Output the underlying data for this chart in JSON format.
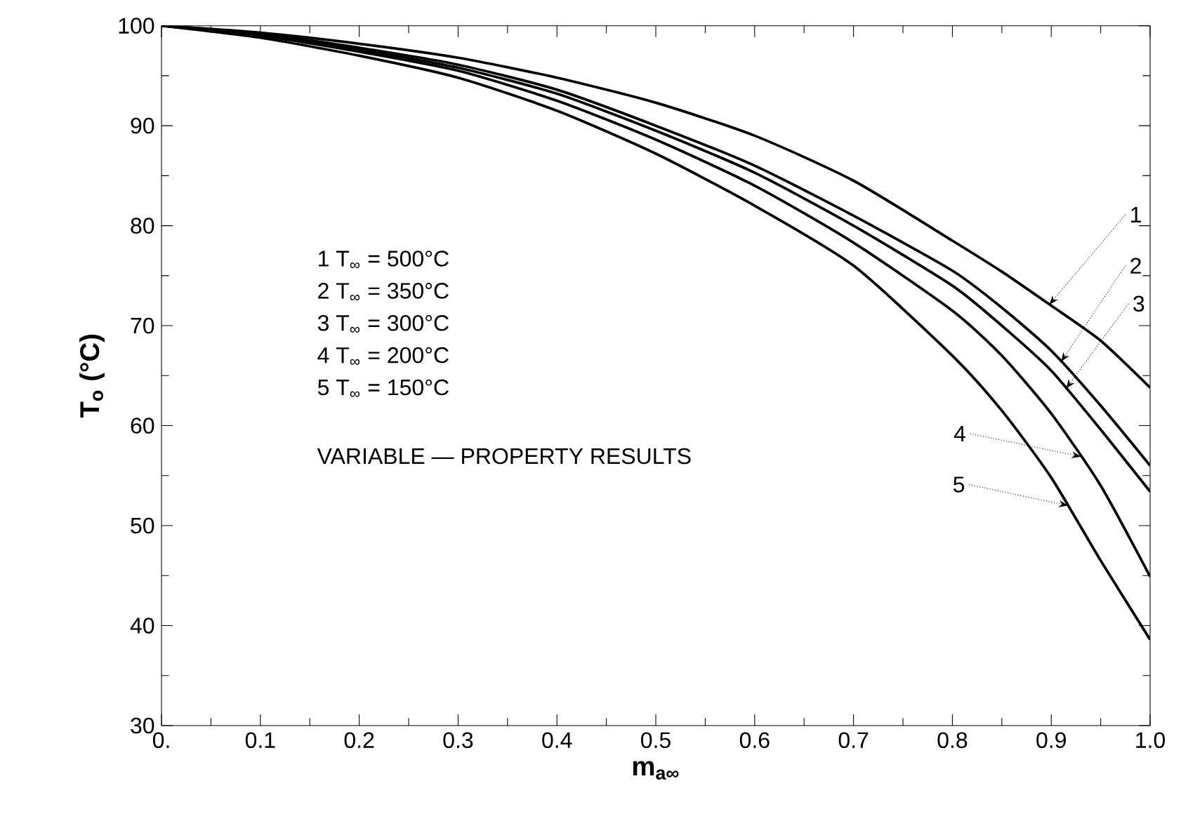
{
  "chart_data": {
    "type": "line",
    "xlabel": "m$_{a∞}$",
    "ylabel": "T$_{o}$    (°C)",
    "xlim": [
      0,
      1.0
    ],
    "ylim": [
      30,
      100
    ],
    "xticks": [
      {
        "value": 0,
        "label": "0."
      },
      0.1,
      0.2,
      0.3,
      0.4,
      0.5,
      0.6,
      0.7,
      0.8,
      0.9,
      {
        "value": 1.0,
        "label": "1.0"
      }
    ],
    "yticks": [
      30,
      40,
      50,
      60,
      70,
      80,
      90,
      100
    ],
    "grid": false,
    "marker": "none",
    "line_style": "solid",
    "x": [
      0,
      0.1,
      0.2,
      0.3,
      0.4,
      0.5,
      0.6,
      0.7,
      0.8,
      0.85,
      0.9,
      0.95,
      1.0
    ],
    "series": [
      {
        "color": "#000000",
        "values": [
          100,
          99.3,
          98.2,
          96.8,
          94.8,
          92.3,
          89.0,
          84.5,
          78.5,
          75.4,
          72.0,
          68.5,
          63.8
        ]
      },
      {
        "color": "#000000",
        "values": [
          100,
          99.2,
          97.8,
          96.1,
          93.6,
          90.0,
          86.0,
          81.0,
          75.5,
          71.8,
          67.5,
          62.0,
          56.0
        ]
      },
      {
        "color": "#000000",
        "values": [
          100,
          99.1,
          97.6,
          95.8,
          93.2,
          89.5,
          85.3,
          80.0,
          74.0,
          70.0,
          65.5,
          59.6,
          53.4
        ]
      },
      {
        "color": "#000000",
        "values": [
          100,
          99.0,
          97.4,
          95.5,
          92.5,
          88.6,
          84.0,
          78.3,
          71.5,
          67.0,
          61.2,
          54.0,
          44.9
        ]
      },
      {
        "color": "#000000",
        "values": [
          100,
          98.8,
          97.0,
          94.8,
          91.5,
          87.2,
          82.0,
          76.0,
          67.0,
          61.5,
          54.8,
          46.5,
          38.6
        ]
      }
    ],
    "annotations": [
      "1   T$_{∞}$   =   500°C",
      "2   T$_{∞}$   =   350°C",
      "3   T$_{∞}$   =   300°C",
      "4   T$_{∞}$   =   200°C",
      "5   T$_{∞}$   =   150°C",
      "VARIABLE — PROPERTY RESULTS",
      {
        "text": "1",
        "x": 0.898,
        "y": 72.1
      },
      {
        "text": "2",
        "x": 0.91,
        "y": 66.4
      },
      {
        "text": "3",
        "x": 0.915,
        "y": 63.7
      },
      {
        "text": "4",
        "x": 0.93,
        "y": 56.9
      },
      {
        "text": "5",
        "x": 0.917,
        "y": 52.0
      }
    ]
  }
}
